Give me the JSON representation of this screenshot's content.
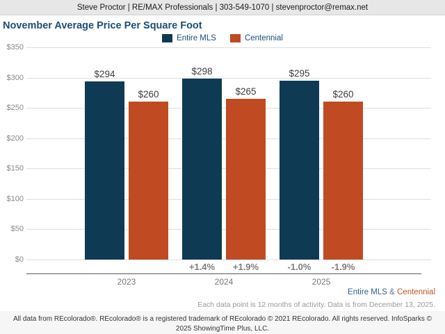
{
  "header": {
    "contact": "Steve Proctor | RE/MAX Professionals | 303-549-1070 | stevenproctor@remax.net"
  },
  "title": "November Average Price Per Square Foot",
  "chart_data": {
    "type": "bar",
    "title": "November Average Price Per Square Foot",
    "categories": [
      "2023",
      "2024",
      "2025"
    ],
    "series": [
      {
        "name": "Entire MLS",
        "color": "#0e3a54",
        "values": [
          294,
          298,
          295
        ],
        "value_labels": [
          "$294",
          "$298",
          "$295"
        ]
      },
      {
        "name": "Centennial",
        "color": "#c04a21",
        "values": [
          260,
          265,
          260
        ],
        "value_labels": [
          "$260",
          "$265",
          "$260"
        ]
      }
    ],
    "pct_change": [
      [
        "",
        ""
      ],
      [
        "+1.4%",
        "+1.9%"
      ],
      [
        "-1.0%",
        "-1.9%"
      ]
    ],
    "y_ticks": [
      {
        "label": "$350",
        "value": 350
      },
      {
        "label": "$300",
        "value": 300
      },
      {
        "label": "$250",
        "value": 250
      },
      {
        "label": "$200",
        "value": 200
      },
      {
        "label": "$150",
        "value": 150
      },
      {
        "label": "$100",
        "value": 100
      },
      {
        "label": "$50",
        "value": 50
      },
      {
        "label": "$0",
        "value": 0
      }
    ],
    "ylim": [
      0,
      350
    ],
    "grid": true,
    "legend_position": "top-center"
  },
  "bottom_note": {
    "series1": "Entire MLS",
    "amp": "&",
    "series2": "Centennial",
    "data_note": "Each data point is 12 months of activity. Data is from December 13, 2025."
  },
  "footer": {
    "disclaimer": "All data from REcolorado®. REcolorado® is a registered trademark of REcolorado © 2021 REcolorado. All rights reserved. InfoSparks © 2025 ShowingTime Plus, LLC."
  },
  "colors": {
    "entire_mls": "#0e3a54",
    "centennial": "#c04a21",
    "title_blue": "#1c4d74",
    "header_bg": "#e7e7e7",
    "gridline": "#dddddd",
    "value_label": "#3d3d3d",
    "pct_label": "#7d7d7d",
    "axis_line": "#5a5a5a"
  }
}
